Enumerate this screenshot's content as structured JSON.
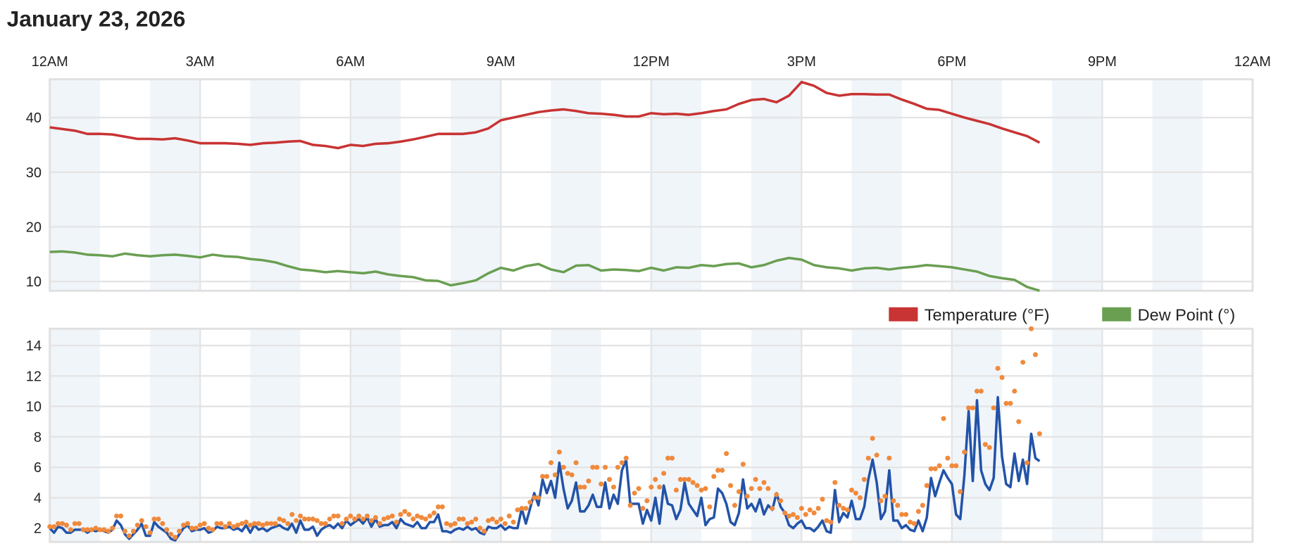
{
  "title": "January 23, 2026",
  "colors": {
    "temperature": "#c83333",
    "dew_point": "#6a9f52",
    "wind": "#2253a8",
    "gust": "#f08a3c",
    "hour_band": "#f0f5fa",
    "grid": "#e4e4e4"
  },
  "x_axis": {
    "range": [
      "00:00",
      "24:00"
    ],
    "tick_labels": [
      "12AM",
      "3AM",
      "6AM",
      "9AM",
      "12PM",
      "3PM",
      "6PM",
      "9PM",
      "12AM"
    ],
    "shaded_hours": "alternate hours, starting 12AM"
  },
  "chart_data": [
    {
      "type": "line",
      "ylim": [
        8.3,
        47
      ],
      "yticks": [
        10,
        20,
        30,
        40
      ],
      "grid": true,
      "legend": "bottom-right",
      "x_start": "00:00",
      "x_interval_minutes": 15,
      "series": [
        {
          "name": "Temperature (°F)",
          "color_key": "temperature",
          "values": [
            38.2,
            37.9,
            37.6,
            37.0,
            37.0,
            36.9,
            36.5,
            36.1,
            36.1,
            36.0,
            36.2,
            35.8,
            35.3,
            35.3,
            35.3,
            35.2,
            35.0,
            35.3,
            35.4,
            35.6,
            35.7,
            35.0,
            34.8,
            34.4,
            35.0,
            34.8,
            35.2,
            35.3,
            35.6,
            36.0,
            36.5,
            37.0,
            37.0,
            37.0,
            37.3,
            38.0,
            39.5,
            40.0,
            40.5,
            41.0,
            41.3,
            41.5,
            41.2,
            40.8,
            40.7,
            40.5,
            40.2,
            40.2,
            40.8,
            40.6,
            40.7,
            40.5,
            40.8,
            41.2,
            41.5,
            42.5,
            43.2,
            43.4,
            42.8,
            44.0,
            46.5,
            45.8,
            44.5,
            44.0,
            44.3,
            44.3,
            44.2,
            44.2,
            43.3,
            42.5,
            41.6,
            41.4,
            40.7,
            40.0,
            39.4,
            38.8,
            38.0,
            37.3,
            36.6,
            35.4
          ]
        },
        {
          "name": "Dew Point (°)",
          "color_key": "dew_point",
          "values": [
            15.4,
            15.5,
            15.3,
            14.9,
            14.8,
            14.6,
            15.1,
            14.8,
            14.6,
            14.8,
            14.9,
            14.7,
            14.4,
            14.9,
            14.6,
            14.5,
            14.1,
            13.9,
            13.5,
            12.8,
            12.2,
            12.0,
            11.7,
            11.9,
            11.7,
            11.5,
            11.8,
            11.3,
            11.0,
            10.8,
            10.2,
            10.1,
            9.3,
            9.7,
            10.2,
            11.5,
            12.5,
            12.0,
            12.8,
            13.2,
            12.2,
            11.7,
            12.9,
            13.0,
            12.0,
            12.2,
            12.1,
            11.9,
            12.5,
            12.0,
            12.6,
            12.5,
            13.0,
            12.8,
            13.2,
            13.3,
            12.6,
            13.0,
            13.8,
            14.3,
            14.0,
            13.0,
            12.6,
            12.4,
            12.0,
            12.4,
            12.5,
            12.2,
            12.5,
            12.7,
            13.0,
            12.8,
            12.6,
            12.2,
            11.8,
            11.0,
            10.6,
            10.3,
            9.0,
            8.3
          ]
        }
      ]
    },
    {
      "type": "line",
      "ylim": [
        1.1,
        15.1
      ],
      "yticks": [
        2,
        4,
        6,
        8,
        10,
        12,
        14
      ],
      "grid": true,
      "x_start": "00:00",
      "x_interval_minutes": 5,
      "series": [
        {
          "color_key": "wind",
          "style": "line",
          "values": [
            2.0,
            1.7,
            2.1,
            2.0,
            1.7,
            1.7,
            1.9,
            1.9,
            1.9,
            1.7,
            1.9,
            1.8,
            1.9,
            1.8,
            1.7,
            1.9,
            2.5,
            2.2,
            1.6,
            1.3,
            1.6,
            1.9,
            2.3,
            1.5,
            1.5,
            2.4,
            2.1,
            1.9,
            1.7,
            1.3,
            1.2,
            1.6,
            2.0,
            2.2,
            1.8,
            1.9,
            1.9,
            2.0,
            1.7,
            1.8,
            2.1,
            2.0,
            2.0,
            2.1,
            1.9,
            2.0,
            1.8,
            2.2,
            1.7,
            2.2,
            1.9,
            2.0,
            1.8,
            2.0,
            2.1,
            2.2,
            2.0,
            1.9,
            2.3,
            1.7,
            2.5,
            1.9,
            1.9,
            2.1,
            1.5,
            1.9,
            2.1,
            2.2,
            2.0,
            2.3,
            2.0,
            2.5,
            2.2,
            2.4,
            2.6,
            2.3,
            2.7,
            2.1,
            2.6,
            2.1,
            2.2,
            2.2,
            2.4,
            2.0,
            2.6,
            2.3,
            2.2,
            2.1,
            2.4,
            2.0,
            2.0,
            2.4,
            2.4,
            2.9,
            1.8,
            1.8,
            1.7,
            1.9,
            2.0,
            1.9,
            2.1,
            1.9,
            2.0,
            1.7,
            1.6,
            2.1,
            2.0,
            2.0,
            2.2,
            1.9,
            2.1,
            2.0,
            2.0,
            3.3,
            2.3,
            3.3,
            4.3,
            3.5,
            5.2,
            4.3,
            5.1,
            4.0,
            6.3,
            4.6,
            3.3,
            3.8,
            5.0,
            3.1,
            3.1,
            3.5,
            4.2,
            3.4,
            3.4,
            5.0,
            3.3,
            4.2,
            3.6,
            5.8,
            6.5,
            3.6,
            3.6,
            3.6,
            2.3,
            3.2,
            2.5,
            4.0,
            2.3,
            4.8,
            3.6,
            3.5,
            2.6,
            3.2,
            5.0,
            3.6,
            3.2,
            2.8,
            4.0,
            2.2,
            2.6,
            2.7,
            4.6,
            4.3,
            3.6,
            2.4,
            2.2,
            3.0,
            5.2,
            3.3,
            3.6,
            3.1,
            3.9,
            2.9,
            3.5,
            3.2,
            4.3,
            3.4,
            3.0,
            2.2,
            2.0,
            2.3,
            2.5,
            2.0,
            2.0,
            1.8,
            2.1,
            2.5,
            1.8,
            1.7,
            4.5,
            2.4,
            3.0,
            2.7,
            3.8,
            2.6,
            2.6,
            3.4,
            5.2,
            6.5,
            5.0,
            2.6,
            3.1,
            5.8,
            2.5,
            2.5,
            2.0,
            2.2,
            1.9,
            1.8,
            2.5,
            1.8,
            2.7,
            5.3,
            4.1,
            5.0,
            5.8,
            5.3,
            4.9,
            2.9,
            2.6,
            5.5,
            9.7,
            5.1,
            10.4,
            5.8,
            4.9,
            4.5,
            5.3,
            10.6,
            6.7,
            4.9,
            4.7,
            6.9,
            5.1,
            6.5,
            4.9,
            8.2,
            6.6,
            6.4
          ]
        },
        {
          "color_key": "gust",
          "style": "dots",
          "values": [
            2.1,
            2.1,
            2.3,
            2.3,
            2.2,
            1.9,
            2.3,
            2.3,
            1.9,
            1.9,
            1.9,
            2.0,
            1.9,
            1.9,
            1.8,
            2.0,
            2.8,
            2.8,
            1.8,
            1.5,
            1.8,
            2.2,
            2.5,
            2.1,
            1.7,
            2.6,
            2.6,
            2.3,
            1.9,
            1.6,
            1.4,
            1.8,
            2.2,
            2.3,
            2.0,
            2.0,
            2.2,
            2.3,
            2.0,
            1.9,
            2.3,
            2.3,
            2.1,
            2.3,
            2.1,
            2.2,
            2.3,
            2.4,
            2.2,
            2.3,
            2.3,
            2.2,
            2.3,
            2.3,
            2.3,
            2.6,
            2.5,
            2.3,
            2.9,
            2.5,
            2.8,
            2.6,
            2.6,
            2.6,
            2.5,
            2.3,
            2.3,
            2.6,
            2.8,
            2.8,
            2.3,
            2.6,
            2.8,
            2.6,
            2.8,
            2.6,
            2.8,
            2.5,
            2.7,
            2.3,
            2.6,
            2.7,
            2.8,
            2.4,
            2.9,
            3.1,
            2.9,
            2.6,
            2.8,
            2.7,
            2.6,
            2.8,
            3.0,
            3.4,
            3.4,
            2.3,
            2.2,
            2.3,
            2.6,
            2.6,
            2.3,
            2.4,
            2.6,
            2.0,
            1.8,
            2.5,
            2.6,
            2.4,
            2.6,
            2.3,
            2.8,
            2.4,
            3.2,
            3.3,
            3.3,
            3.7,
            4.0,
            4.0,
            5.4,
            5.4,
            6.3,
            5.5,
            7.0,
            6.0,
            5.6,
            5.5,
            6.3,
            4.7,
            4.7,
            5.1,
            6.0,
            6.0,
            4.9,
            6.0,
            5.2,
            4.7,
            6.0,
            6.3,
            6.6,
            3.5,
            4.3,
            4.6,
            3.3,
            3.8,
            4.7,
            5.2,
            4.7,
            5.6,
            6.6,
            6.6,
            4.5,
            5.2,
            5.2,
            5.2,
            5.0,
            4.8,
            4.5,
            4.6,
            3.4,
            5.4,
            5.8,
            5.8,
            6.9,
            4.8,
            3.5,
            4.4,
            6.2,
            4.1,
            4.6,
            5.2,
            4.6,
            5.0,
            4.6,
            3.3,
            4.2,
            3.8,
            3.0,
            2.8,
            2.9,
            2.7,
            3.3,
            2.9,
            3.2,
            3.0,
            3.3,
            3.9,
            2.5,
            2.4,
            5.0,
            3.5,
            3.3,
            3.2,
            4.5,
            4.3,
            4.0,
            5.2,
            6.6,
            7.9,
            6.8,
            3.8,
            4.1,
            6.6,
            3.8,
            3.5,
            2.9,
            2.9,
            2.4,
            2.3,
            3.1,
            3.5,
            4.8,
            5.9,
            5.9,
            6.1,
            9.2,
            6.6,
            6.1,
            6.1,
            4.4,
            7.0,
            9.9,
            9.9,
            11.0,
            11.0,
            7.5,
            7.3,
            9.9,
            12.5,
            11.9,
            10.2,
            10.2,
            11.0,
            9.0,
            12.9,
            6.3,
            15.1,
            13.4,
            8.2
          ]
        }
      ]
    }
  ]
}
